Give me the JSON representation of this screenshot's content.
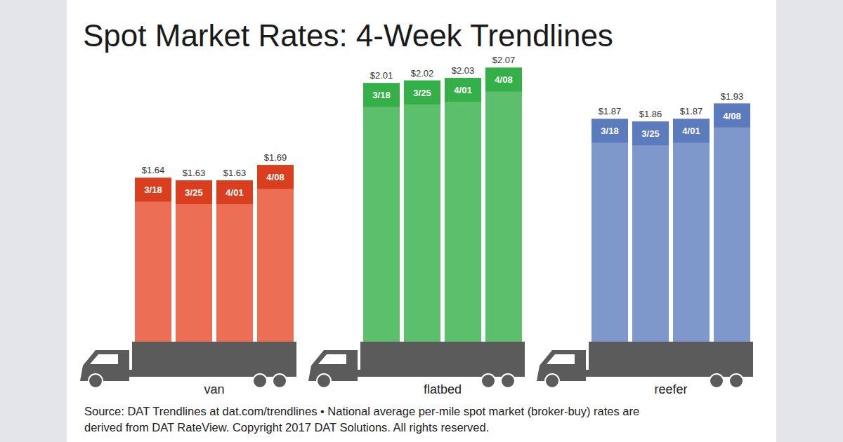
{
  "chart_data": {
    "type": "bar",
    "title": "Spot Market Rates: 4-Week Trendlines",
    "categories": [
      "3/18",
      "3/25",
      "4/01",
      "4/08"
    ],
    "series": [
      {
        "name": "van",
        "color": "#ec6f55",
        "values": [
          1.64,
          1.63,
          1.63,
          1.69
        ],
        "value_labels": [
          "$1.64",
          "$1.63",
          "$1.63",
          "$1.69"
        ]
      },
      {
        "name": "flatbed",
        "color": "#5cbf6c",
        "values": [
          2.01,
          2.02,
          2.03,
          2.07
        ],
        "value_labels": [
          "$2.01",
          "$2.02",
          "$2.03",
          "$2.07"
        ]
      },
      {
        "name": "reefer",
        "color": "#7f98cc",
        "values": [
          1.87,
          1.86,
          1.87,
          1.93
        ],
        "value_labels": [
          "$1.87",
          "$1.86",
          "$1.87",
          "$1.93"
        ]
      }
    ],
    "ylim": [
      1.0,
      2.1
    ],
    "tick_labels": false,
    "grid": false,
    "data_labels": true,
    "annotations": [
      "Source: DAT Trendlines at dat.com/trendlines • National average per-mile spot market (broker-buy) rates are",
      "derived from DAT RateView. Copyright 2017 DAT Solutions. All rights reserved."
    ]
  }
}
